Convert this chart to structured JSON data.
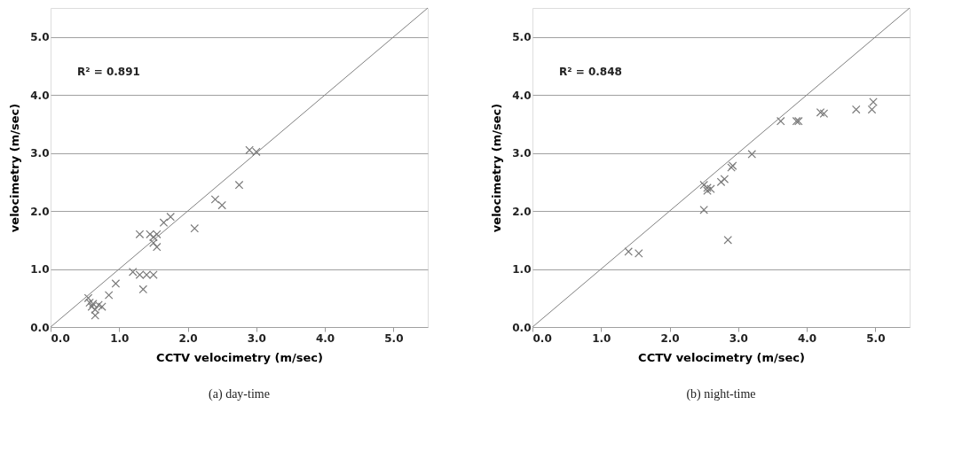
{
  "chart_data": [
    {
      "type": "scatter",
      "xlabel": "CCTV velocimetry (m/sec)",
      "ylabel": "velocimetry (m/sec)",
      "xlim": [
        0,
        5.5
      ],
      "ylim": [
        0,
        5.5
      ],
      "xticks": [
        {
          "value": 0,
          "label": "0.0"
        },
        {
          "value": 1,
          "label": "1.0"
        },
        {
          "value": 2,
          "label": "2.0"
        },
        {
          "value": 3,
          "label": "3.0"
        },
        {
          "value": 4,
          "label": "4.0"
        },
        {
          "value": 5,
          "label": "5.0"
        }
      ],
      "yticks": [
        {
          "value": 0,
          "label": "0.0"
        },
        {
          "value": 1,
          "label": "1.0"
        },
        {
          "value": 2,
          "label": "2.0"
        },
        {
          "value": 3,
          "label": "3.0"
        },
        {
          "value": 4,
          "label": "4.0"
        },
        {
          "value": 5,
          "label": "5.0"
        }
      ],
      "grid": "y",
      "annotations": [
        "R² = 0.891",
        "(a) day-time"
      ],
      "series": [
        {
          "marker": "cross",
          "color": "#7a7a7a",
          "x": [
            0.55,
            0.57,
            0.6,
            0.62,
            0.65,
            0.65,
            0.7,
            0.75,
            0.85,
            0.95,
            1.2,
            1.3,
            1.35,
            1.4,
            1.5,
            1.3,
            1.45,
            1.5,
            1.5,
            1.55,
            1.55,
            1.65,
            1.75,
            2.1,
            2.4,
            2.5,
            2.75,
            2.9,
            3.0
          ],
          "values": [
            0.5,
            0.42,
            0.35,
            0.4,
            0.3,
            0.2,
            0.38,
            0.35,
            0.55,
            0.75,
            0.95,
            0.9,
            0.65,
            0.9,
            0.9,
            1.6,
            1.6,
            1.55,
            1.45,
            1.6,
            1.38,
            1.8,
            1.9,
            1.7,
            2.2,
            2.1,
            2.45,
            3.05,
            3.02
          ]
        },
        {
          "type": "line",
          "marker": "none",
          "line_style": "solid",
          "color": "#808080",
          "x": [
            0,
            5.5
          ],
          "values": [
            0,
            5.5
          ]
        }
      ]
    },
    {
      "type": "scatter",
      "xlabel": "CCTV velocimetry (m/sec)",
      "ylabel": "velocimetry (m/sec)",
      "xlim": [
        0,
        5.5
      ],
      "ylim": [
        0,
        5.5
      ],
      "xticks": [
        {
          "value": 0,
          "label": "0.0"
        },
        {
          "value": 1,
          "label": "1.0"
        },
        {
          "value": 2,
          "label": "2.0"
        },
        {
          "value": 3,
          "label": "3.0"
        },
        {
          "value": 4,
          "label": "4.0"
        },
        {
          "value": 5,
          "label": "5.0"
        }
      ],
      "yticks": [
        {
          "value": 0,
          "label": "0.0"
        },
        {
          "value": 1,
          "label": "1.0"
        },
        {
          "value": 2,
          "label": "2.0"
        },
        {
          "value": 3,
          "label": "3.0"
        },
        {
          "value": 4,
          "label": "4.0"
        },
        {
          "value": 5,
          "label": "5.0"
        }
      ],
      "grid": "y",
      "annotations": [
        "R² = 0.848",
        "(b) night-time"
      ],
      "series": [
        {
          "marker": "cross",
          "color": "#7a7a7a",
          "x": [
            1.4,
            1.55,
            2.5,
            2.5,
            2.55,
            2.55,
            2.6,
            2.75,
            2.8,
            2.85,
            2.9,
            2.92,
            3.2,
            3.62,
            3.85,
            3.88,
            4.2,
            4.25,
            4.72,
            4.95,
            4.97
          ],
          "values": [
            1.3,
            1.27,
            2.45,
            2.02,
            2.35,
            2.4,
            2.38,
            2.5,
            2.55,
            1.5,
            2.75,
            2.78,
            2.98,
            3.55,
            3.55,
            3.55,
            3.7,
            3.68,
            3.75,
            3.75,
            3.88
          ]
        },
        {
          "type": "line",
          "marker": "none",
          "line_style": "solid",
          "color": "#808080",
          "x": [
            0,
            5.5
          ],
          "values": [
            0,
            5.5
          ]
        }
      ]
    }
  ]
}
